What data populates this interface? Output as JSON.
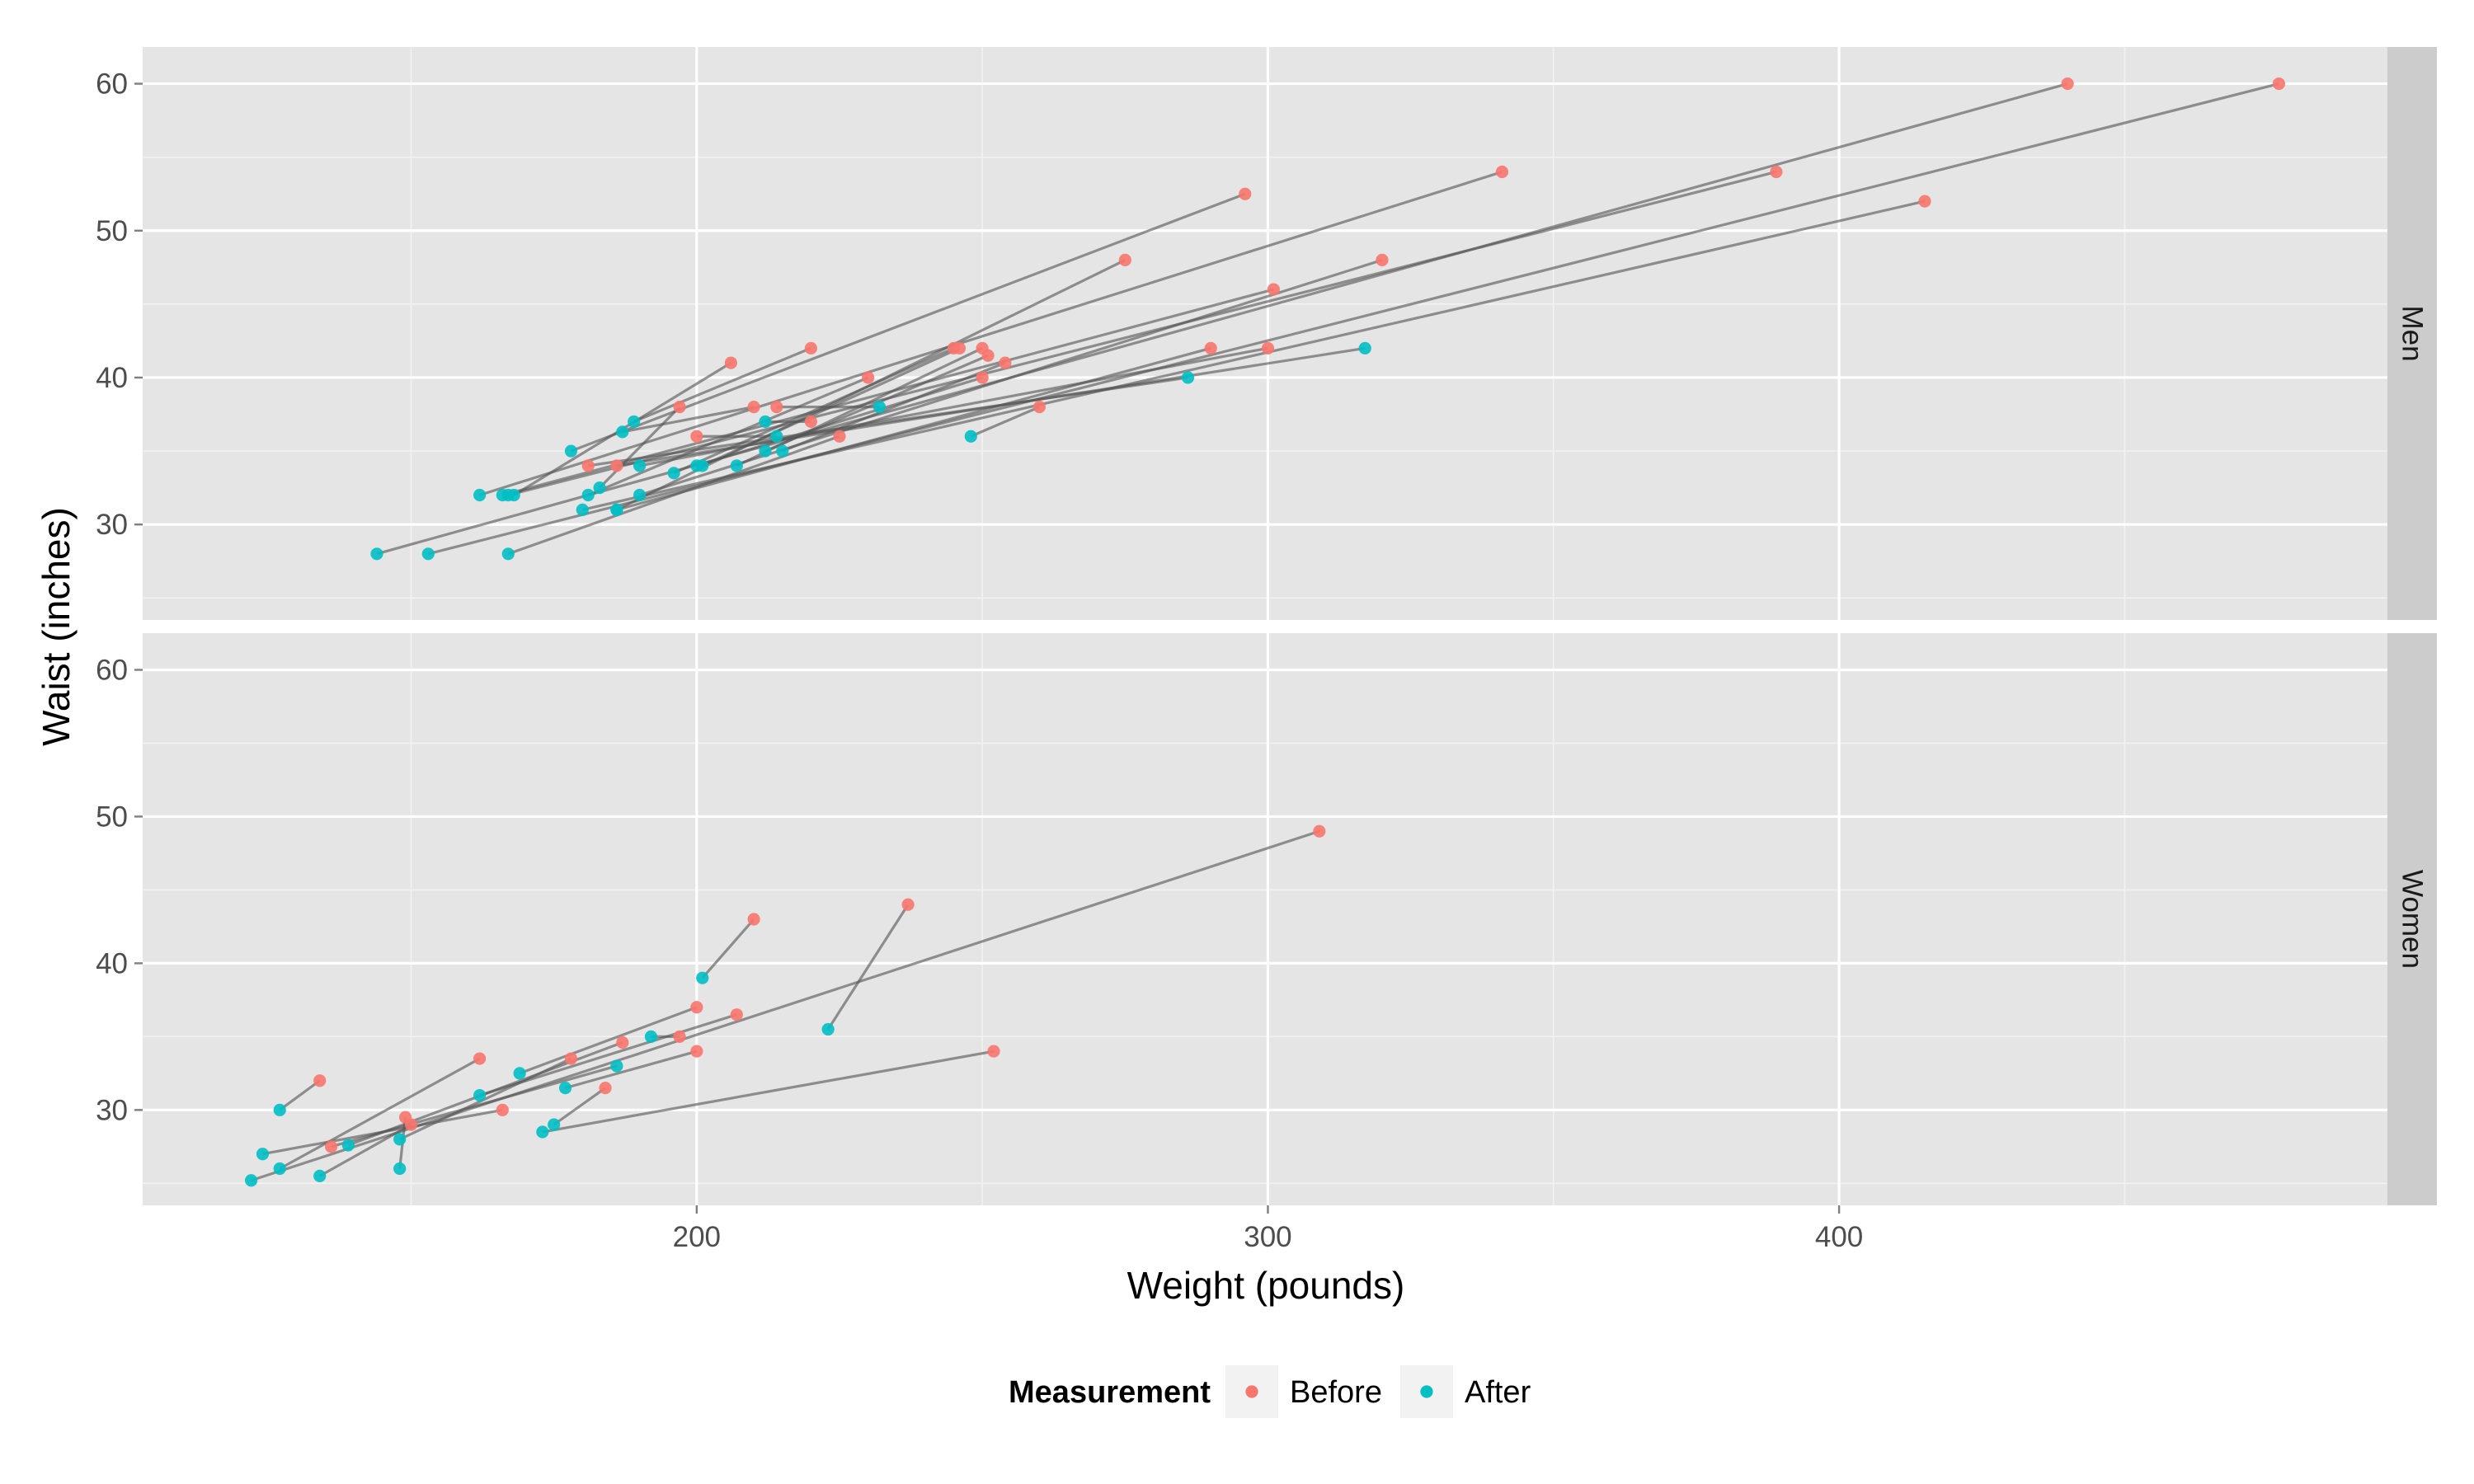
{
  "chart_data": {
    "type": "scatter",
    "style": "faceted paired scatter; each subject's Before and After points joined by a grey line",
    "xlabel": "Weight (pounds)",
    "ylabel": "Waist (inches)",
    "xlim": [
      103,
      496
    ],
    "ylim": [
      23.5,
      62.5
    ],
    "x_ticks": [
      200,
      300,
      400
    ],
    "y_ticks": [
      30,
      40,
      50,
      60
    ],
    "grid": true,
    "legend": {
      "title": "Measurement",
      "position": "bottom",
      "entries": [
        {
          "name": "Before",
          "color": "#F8766D"
        },
        {
          "name": "After",
          "color": "#00BFC4"
        }
      ]
    },
    "colors": {
      "Before": "#F8766D",
      "After": "#00BFC4",
      "panel_bg": "#E5E5E5",
      "strip_bg": "#CCCCCC",
      "grid": "#FFFFFF",
      "pair_line": "#555555"
    },
    "facets": [
      {
        "label": "Men",
        "pairs": [
          {
            "before": [
              440,
              60
            ],
            "after": [
              144,
              28
            ]
          },
          {
            "before": [
              477,
              60
            ],
            "after": [
              153,
              28
            ]
          },
          {
            "before": [
              341,
              54
            ],
            "after": [
              162,
              32
            ]
          },
          {
            "before": [
              389,
              54
            ],
            "after": [
              167,
              32
            ]
          },
          {
            "before": [
              296,
              52.5
            ],
            "after": [
              178,
              35
            ]
          },
          {
            "before": [
              415,
              52
            ],
            "after": [
              180,
              31
            ]
          },
          {
            "before": [
              275,
              48
            ],
            "after": [
              186,
              31
            ]
          },
          {
            "before": [
              320,
              48
            ],
            "after": [
              190,
              32
            ]
          },
          {
            "before": [
              301,
              46
            ],
            "after": [
              166,
              32
            ]
          },
          {
            "before": [
              206,
              41
            ],
            "after": [
              168,
              32
            ]
          },
          {
            "before": [
              220,
              42
            ],
            "after": [
              189,
              37
            ]
          },
          {
            "before": [
              245,
              42
            ],
            "after": [
              196,
              33.5
            ]
          },
          {
            "before": [
              246,
              42
            ],
            "after": [
              201,
              34
            ]
          },
          {
            "before": [
              250,
              42
            ],
            "after": [
              207,
              34
            ]
          },
          {
            "before": [
              251,
              41.5
            ],
            "after": [
              212,
              35
            ]
          },
          {
            "before": [
              254,
              41
            ],
            "after": [
              215,
              35
            ]
          },
          {
            "before": [
              250,
              40
            ],
            "after": [
              200,
              34
            ]
          },
          {
            "before": [
              230,
              40
            ],
            "after": [
              181,
              32
            ]
          },
          {
            "before": [
              290,
              42
            ],
            "after": [
              186,
              31
            ]
          },
          {
            "before": [
              300,
              42
            ],
            "after": [
              190,
              34
            ]
          },
          {
            "before": [
              260,
              38
            ],
            "after": [
              248,
              36
            ]
          },
          {
            "before": [
              214,
              38
            ],
            "after": [
              232,
              38
            ]
          },
          {
            "before": [
              210,
              38
            ],
            "after": [
              187,
              36.3
            ]
          },
          {
            "before": [
              197,
              38
            ],
            "after": [
              183,
              32.5
            ]
          },
          {
            "before": [
              200,
              36
            ],
            "after": [
              214,
              36
            ]
          },
          {
            "before": [
              220,
              37
            ],
            "after": [
              212,
              37
            ]
          },
          {
            "before": [
              225,
              36
            ],
            "after": [
              167,
              28
            ]
          },
          {
            "before": [
              186,
              34
            ],
            "after": [
              317,
              42
            ]
          },
          {
            "before": [
              181,
              34
            ],
            "after": [
              286,
              40
            ]
          }
        ]
      },
      {
        "label": "Women",
        "pairs": [
          {
            "before": [
              309,
              49
            ],
            "after": [
              122,
              25.2
            ]
          },
          {
            "before": [
              210,
              43
            ],
            "after": [
              201,
              39
            ]
          },
          {
            "before": [
              237,
              44
            ],
            "after": [
              223,
              35.5
            ]
          },
          {
            "before": [
              252,
              34
            ],
            "after": [
              173,
              28.5
            ]
          },
          {
            "before": [
              162,
              33.5
            ],
            "after": [
              127,
              26
            ]
          },
          {
            "before": [
              207,
              36.5
            ],
            "after": [
              162,
              31
            ]
          },
          {
            "before": [
              200,
              37
            ],
            "after": [
              169,
              32.5
            ]
          },
          {
            "before": [
              197,
              35
            ],
            "after": [
              192,
              35
            ]
          },
          {
            "before": [
              200,
              34
            ],
            "after": [
              177,
              31.5
            ]
          },
          {
            "before": [
              187,
              34.6
            ],
            "after": [
              139,
              27.6
            ]
          },
          {
            "before": [
              178,
              33.5
            ],
            "after": [
              148,
              28
            ]
          },
          {
            "before": [
              184,
              31.5
            ],
            "after": [
              175,
              29
            ]
          },
          {
            "before": [
              166,
              30
            ],
            "after": [
              124,
              27
            ]
          },
          {
            "before": [
              149,
              29.5
            ],
            "after": [
              148,
              26
            ]
          },
          {
            "before": [
              134,
              32
            ],
            "after": [
              127,
              30
            ]
          },
          {
            "before": [
              150,
              29
            ],
            "after": [
              134,
              25.5
            ]
          },
          {
            "before": [
              136,
              27.5
            ],
            "after": [
              186,
              33
            ]
          }
        ]
      }
    ]
  }
}
